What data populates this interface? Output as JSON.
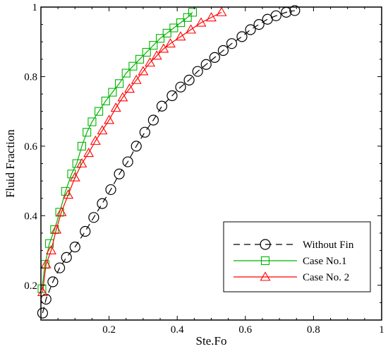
{
  "chart_data": {
    "type": "line",
    "title": "",
    "xlabel": "Ste.Fo",
    "ylabel": "Fluid Fraction",
    "xlim": [
      0,
      1
    ],
    "ylim": [
      0.1,
      1
    ],
    "grid": false,
    "legend_position": "bottom-right",
    "x_ticks": [
      {
        "value": 0.2,
        "label": "0.2"
      },
      {
        "value": 0.4,
        "label": "0.4"
      },
      {
        "value": 0.6,
        "label": "0.6"
      },
      {
        "value": 0.8,
        "label": "0.8"
      },
      {
        "value": 1.0,
        "label": "1"
      }
    ],
    "y_ticks": [
      {
        "value": 0.2,
        "label": "0.2"
      },
      {
        "value": 0.4,
        "label": "0.4"
      },
      {
        "value": 0.6,
        "label": "0.6"
      },
      {
        "value": 0.8,
        "label": "0.8"
      },
      {
        "value": 1.0,
        "label": "1"
      }
    ],
    "series": [
      {
        "name": "Without Fin",
        "color": "#000000",
        "line_style": "dashed",
        "marker": "circle",
        "x": [
          0.005,
          0.015,
          0.035,
          0.055,
          0.075,
          0.1,
          0.13,
          0.155,
          0.18,
          0.205,
          0.23,
          0.255,
          0.28,
          0.305,
          0.33,
          0.355,
          0.385,
          0.41,
          0.435,
          0.46,
          0.485,
          0.51,
          0.535,
          0.56,
          0.59,
          0.615,
          0.64,
          0.665,
          0.69,
          0.72,
          0.745
        ],
        "y": [
          0.12,
          0.16,
          0.21,
          0.25,
          0.28,
          0.31,
          0.355,
          0.395,
          0.435,
          0.475,
          0.52,
          0.555,
          0.6,
          0.64,
          0.675,
          0.715,
          0.745,
          0.77,
          0.79,
          0.815,
          0.835,
          0.855,
          0.875,
          0.895,
          0.915,
          0.935,
          0.95,
          0.965,
          0.975,
          0.985,
          0.99
        ]
      },
      {
        "name": "Case No.1",
        "color": "#00b400",
        "line_style": "solid",
        "marker": "square",
        "x": [
          0.003,
          0.012,
          0.025,
          0.04,
          0.055,
          0.072,
          0.09,
          0.105,
          0.12,
          0.135,
          0.15,
          0.17,
          0.19,
          0.21,
          0.23,
          0.25,
          0.27,
          0.29,
          0.31,
          0.33,
          0.35,
          0.37,
          0.39,
          0.41,
          0.43,
          0.445
        ],
        "y": [
          0.19,
          0.26,
          0.32,
          0.36,
          0.41,
          0.47,
          0.52,
          0.55,
          0.6,
          0.64,
          0.67,
          0.7,
          0.73,
          0.755,
          0.78,
          0.81,
          0.83,
          0.85,
          0.87,
          0.89,
          0.91,
          0.925,
          0.94,
          0.955,
          0.97,
          0.985
        ]
      },
      {
        "name": "Case No. 2",
        "color": "#ff0000",
        "line_style": "solid",
        "marker": "triangle",
        "x": [
          0.005,
          0.015,
          0.03,
          0.045,
          0.06,
          0.08,
          0.1,
          0.12,
          0.14,
          0.16,
          0.18,
          0.2,
          0.22,
          0.24,
          0.26,
          0.28,
          0.3,
          0.32,
          0.34,
          0.36,
          0.38,
          0.41,
          0.44,
          0.47,
          0.5,
          0.53
        ],
        "y": [
          0.18,
          0.26,
          0.3,
          0.36,
          0.41,
          0.46,
          0.51,
          0.55,
          0.58,
          0.615,
          0.645,
          0.675,
          0.71,
          0.74,
          0.765,
          0.79,
          0.815,
          0.84,
          0.86,
          0.88,
          0.895,
          0.915,
          0.935,
          0.955,
          0.97,
          0.985
        ]
      }
    ]
  }
}
